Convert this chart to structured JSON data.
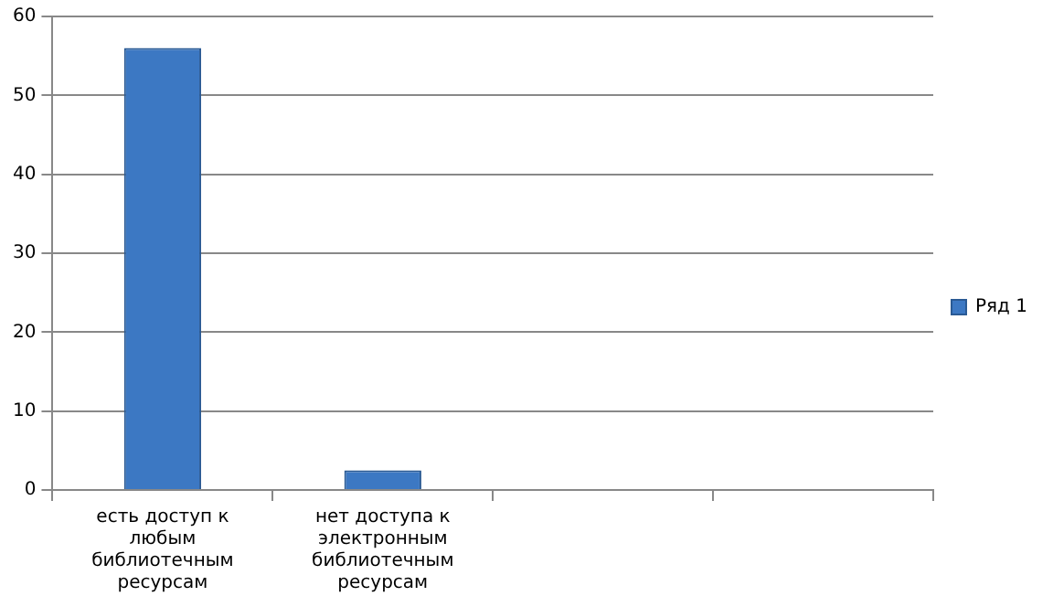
{
  "chart_data": {
    "type": "bar",
    "categories": [
      "есть доступ к любым библиотечным ресурсам",
      "нет доступа к электронным библиотечным ресурсам",
      null,
      null
    ],
    "series": [
      {
        "name": "Ряд 1",
        "color": "#3c78c3",
        "values": [
          56,
          2.5,
          null,
          null
        ]
      }
    ],
    "ylim": [
      0,
      60
    ],
    "yticks": [
      0,
      10,
      20,
      30,
      40,
      50,
      60
    ],
    "grid": "y",
    "legend": "right"
  }
}
